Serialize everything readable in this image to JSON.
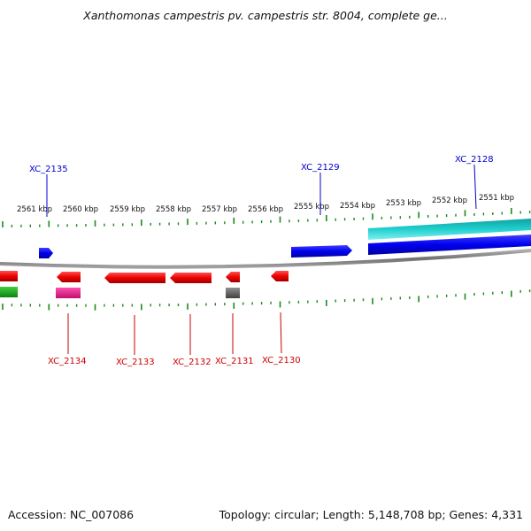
{
  "title": "Xanthomonas campestris pv. campestris str. 8004, complete ge...",
  "footer": {
    "accession": "Accession: NC_007086",
    "summary": "Topology: circular; Length: 5,148,708 bp; Genes: 4,331"
  },
  "colors": {
    "forward_cds": "#0000ee",
    "reverse_cds": "#ee0000",
    "forward_other": "#16c0c0",
    "reverse_other": "#e0208a",
    "pseudo": "#606060",
    "extra": "#22aa22",
    "backbone": "#808080",
    "ticks": "#1a8a1a",
    "label_forward": "#0000cc",
    "label_reverse": "#cc0000"
  },
  "map": {
    "kbp_labels": [
      "2561 kbp",
      "2560 kbp",
      "2559 kbp",
      "2558 kbp",
      "2557 kbp",
      "2556 kbp",
      "2555 kbp",
      "2554 kbp",
      "2553 kbp",
      "2552 kbp",
      "2551 kbp"
    ],
    "genes_forward": [
      {
        "id": "fwd-1",
        "label": "XC_2135",
        "color": "forward_cds"
      },
      {
        "id": "fwd-2",
        "label": "XC_2129",
        "color": "forward_cds"
      },
      {
        "id": "fwd-3",
        "label": "XC_2128",
        "color": "forward_cds"
      },
      {
        "id": "fwd-4",
        "label": "",
        "color": "forward_other"
      }
    ],
    "genes_reverse": [
      {
        "id": "rev-0",
        "label": "",
        "color": "reverse_cds"
      },
      {
        "id": "rev-1",
        "label": "XC_2134",
        "color": "reverse_cds"
      },
      {
        "id": "rev-2",
        "label": "XC_2133",
        "color": "reverse_cds"
      },
      {
        "id": "rev-3",
        "label": "XC_2132",
        "color": "reverse_cds"
      },
      {
        "id": "rev-4",
        "label": "XC_2131",
        "color": "reverse_cds"
      },
      {
        "id": "rev-5",
        "label": "XC_2130",
        "color": "reverse_cds"
      },
      {
        "id": "rev-6",
        "label": "",
        "color": "reverse_other"
      },
      {
        "id": "rev-7",
        "label": "",
        "color": "pseudo"
      },
      {
        "id": "rev-8",
        "label": "",
        "color": "extra"
      }
    ]
  }
}
